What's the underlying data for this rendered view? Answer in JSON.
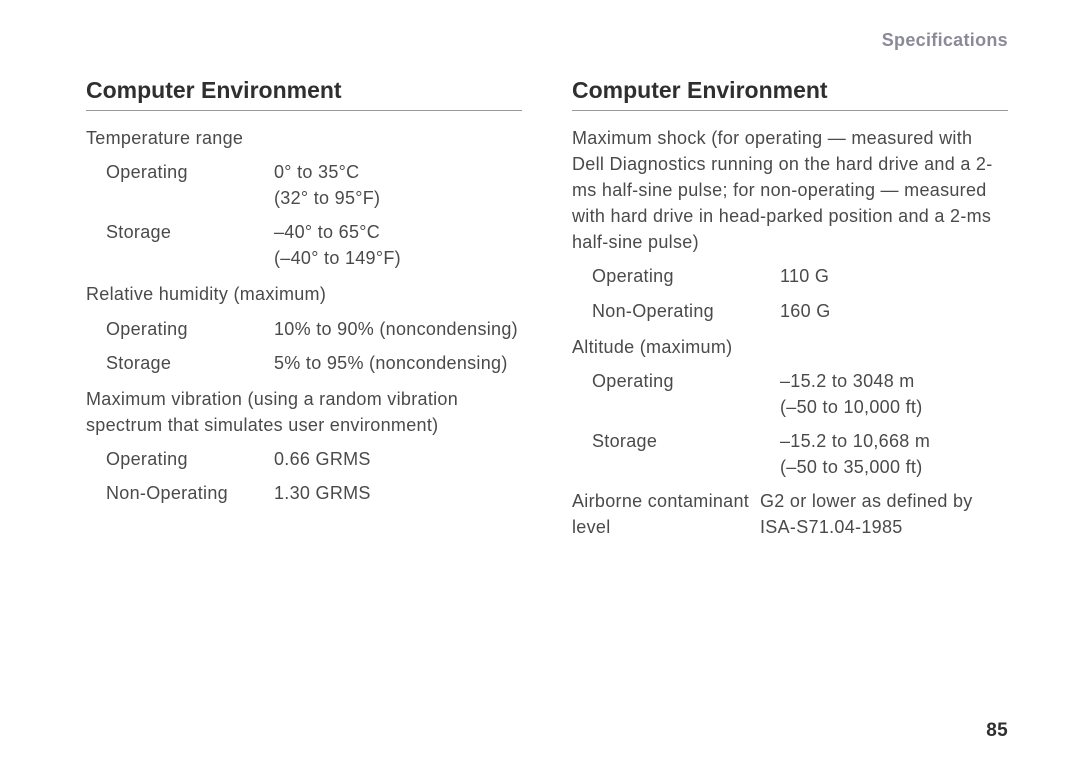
{
  "header": {
    "label": "Specifications"
  },
  "page_number": "85",
  "colors": {
    "text": "#4a4a4a",
    "title": "#2f2f2f",
    "header": "#8a8a99",
    "rule": "#9a9a9a",
    "background": "#ffffff"
  },
  "typography": {
    "body_fontsize_pt": 13,
    "title_fontsize_pt": 17,
    "header_fontsize_pt": 13,
    "pagenum_fontsize_pt": 14,
    "font_family": "Helvetica Neue"
  },
  "left": {
    "title": "Computer Environment",
    "temp": {
      "label": "Temperature range",
      "operating": {
        "label": "Operating",
        "value": "0° to 35°C\n(32° to 95°F)"
      },
      "storage": {
        "label": "Storage",
        "value": "–40° to 65°C\n(–40° to 149°F)"
      }
    },
    "humidity": {
      "label": "Relative humidity (maximum)",
      "operating": {
        "label": "Operating",
        "value": "10% to 90% (noncondensing)"
      },
      "storage": {
        "label": "Storage",
        "value": "5% to 95% (noncondensing)"
      }
    },
    "vibration": {
      "label": "Maximum vibration (using a random vibration spectrum that simulates user environment)",
      "operating": {
        "label": "Operating",
        "value": "0.66 GRMS"
      },
      "non_operating": {
        "label": "Non-Operating",
        "value": "1.30 GRMS"
      }
    }
  },
  "right": {
    "title": "Computer Environment",
    "shock": {
      "label": "Maximum shock (for operating — measured with Dell Diagnostics running on the hard drive and a 2-ms half-sine pulse; for non-operating — measured with hard drive in head-parked position and a 2-ms half-sine pulse)",
      "operating": {
        "label": "Operating",
        "value": "110 G"
      },
      "non_operating": {
        "label": "Non-Operating",
        "value": "160 G"
      }
    },
    "altitude": {
      "label": "Altitude (maximum)",
      "operating": {
        "label": "Operating",
        "value": "–15.2 to 3048 m\n(–50 to 10,000 ft)"
      },
      "storage": {
        "label": "Storage",
        "value": "–15.2 to 10,668 m\n(–50 to 35,000 ft)"
      }
    },
    "airborne": {
      "label": "Airborne contaminant level",
      "value": "G2 or lower as defined by ISA-S71.04-1985"
    }
  }
}
